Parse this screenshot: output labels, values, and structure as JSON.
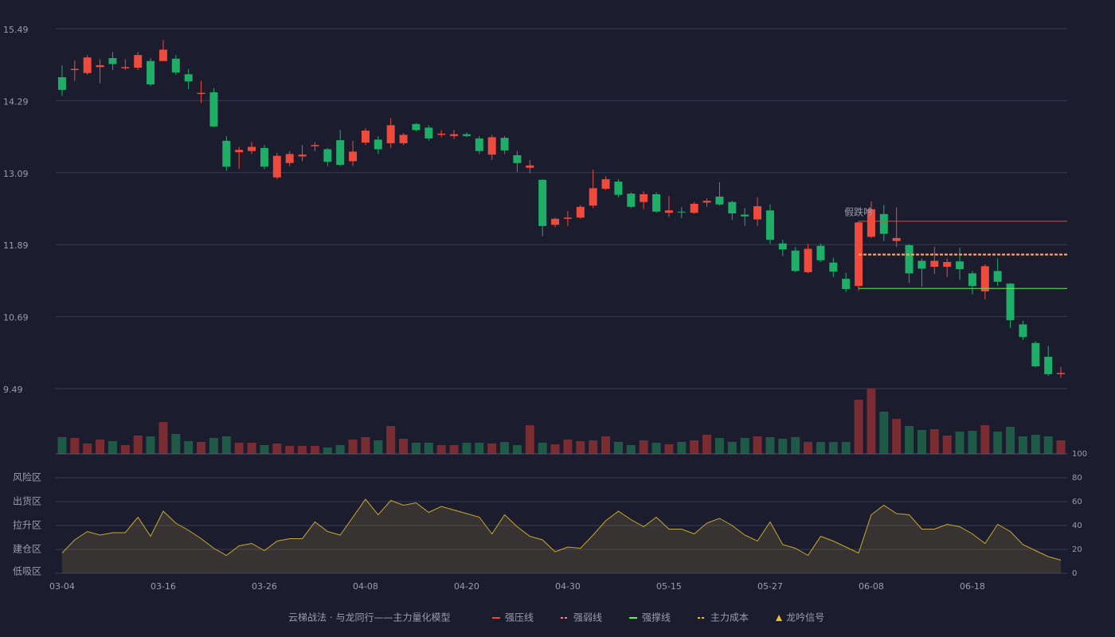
{
  "chart_data": {
    "type": "candlestick",
    "categories": [
      "03-04",
      null,
      null,
      null,
      null,
      null,
      null,
      null,
      "03-16",
      null,
      null,
      null,
      null,
      null,
      null,
      null,
      "03-26",
      null,
      null,
      null,
      null,
      null,
      null,
      null,
      "04-08",
      null,
      null,
      null,
      null,
      null,
      null,
      null,
      "04-20",
      null,
      null,
      null,
      null,
      null,
      null,
      null,
      "04-30",
      null,
      null,
      null,
      null,
      null,
      null,
      null,
      "05-15",
      null,
      null,
      null,
      null,
      null,
      null,
      null,
      "05-27",
      null,
      null,
      null,
      null,
      null,
      null,
      null,
      "06-08",
      null,
      null,
      null,
      null,
      null,
      null,
      null,
      "06-18",
      null,
      null,
      null,
      null,
      null,
      null,
      null
    ],
    "open": [
      14.68,
      14.8,
      14.75,
      14.85,
      15.0,
      14.83,
      14.84,
      14.95,
      14.95,
      14.99,
      14.73,
      14.4,
      14.43,
      13.62,
      13.43,
      13.45,
      13.5,
      13.01,
      13.25,
      13.36,
      13.53,
      13.48,
      13.63,
      13.28,
      13.59,
      13.64,
      13.58,
      13.58,
      13.9,
      13.84,
      13.72,
      13.7,
      13.73,
      13.66,
      13.39,
      13.67,
      13.38,
      13.17,
      12.97,
      12.22,
      12.32,
      12.34,
      12.54,
      12.82,
      12.94,
      12.74,
      12.6,
      12.73,
      12.42,
      12.44,
      12.42,
      12.59,
      12.69,
      12.6,
      12.39,
      12.31,
      12.46,
      11.91,
      11.79,
      11.43,
      11.87,
      11.59,
      11.32,
      11.2,
      12.02,
      12.4,
      11.95,
      11.88,
      11.62,
      11.52,
      11.52,
      11.61,
      11.41,
      11.11,
      11.45,
      11.24,
      10.56,
      10.25,
      10.02,
      9.73
    ],
    "close": [
      14.47,
      14.82,
      15.01,
      14.88,
      14.9,
      14.85,
      15.05,
      14.56,
      15.14,
      14.76,
      14.61,
      14.42,
      13.86,
      13.19,
      13.47,
      13.52,
      13.19,
      13.37,
      13.4,
      13.39,
      13.55,
      13.27,
      13.22,
      13.44,
      13.79,
      13.48,
      13.88,
      13.72,
      13.8,
      13.66,
      13.74,
      13.73,
      13.7,
      13.45,
      13.68,
      13.46,
      13.25,
      13.21,
      12.2,
      12.32,
      12.34,
      12.52,
      12.83,
      12.98,
      12.72,
      12.52,
      12.73,
      12.44,
      12.46,
      12.43,
      12.57,
      12.62,
      12.56,
      12.41,
      12.36,
      12.53,
      11.97,
      11.81,
      11.45,
      11.82,
      11.63,
      11.44,
      11.15,
      12.26,
      12.48,
      12.07,
      12.0,
      11.41,
      11.49,
      11.62,
      11.6,
      11.48,
      11.2,
      11.53,
      11.27,
      10.63,
      10.35,
      9.86,
      9.73,
      9.75
    ],
    "low": [
      14.37,
      14.62,
      14.72,
      14.58,
      14.8,
      14.8,
      14.8,
      14.53,
      14.95,
      14.72,
      14.48,
      14.25,
      13.85,
      13.12,
      13.15,
      13.4,
      13.15,
      12.98,
      13.2,
      13.28,
      13.45,
      13.2,
      13.2,
      13.2,
      13.55,
      13.4,
      13.5,
      13.55,
      13.78,
      13.62,
      13.68,
      13.65,
      13.68,
      13.4,
      13.3,
      13.4,
      13.1,
      13.08,
      12.03,
      12.18,
      12.2,
      12.32,
      12.5,
      12.8,
      12.68,
      12.5,
      12.48,
      12.42,
      12.35,
      12.33,
      12.4,
      12.52,
      12.54,
      12.3,
      12.2,
      12.2,
      11.9,
      11.7,
      11.43,
      11.41,
      11.6,
      11.35,
      11.1,
      11.12,
      12.0,
      11.95,
      11.85,
      11.25,
      11.19,
      11.4,
      11.35,
      11.3,
      11.06,
      10.98,
      11.2,
      10.5,
      10.3,
      9.85,
      9.7,
      9.67
    ],
    "high": [
      14.88,
      14.96,
      15.05,
      14.98,
      15.1,
      14.98,
      15.1,
      15.0,
      15.3,
      15.05,
      14.82,
      14.62,
      14.5,
      13.7,
      13.52,
      13.6,
      13.55,
      13.42,
      13.45,
      13.55,
      13.6,
      13.5,
      13.8,
      13.62,
      13.83,
      13.7,
      14.0,
      13.75,
      13.92,
      13.88,
      13.8,
      13.8,
      13.76,
      13.7,
      13.72,
      13.7,
      13.45,
      13.3,
      12.98,
      12.34,
      12.45,
      12.55,
      13.14,
      13.03,
      12.98,
      12.76,
      12.78,
      12.76,
      12.7,
      12.52,
      12.6,
      12.66,
      12.93,
      12.62,
      12.5,
      12.68,
      12.56,
      11.97,
      11.85,
      11.9,
      11.91,
      11.67,
      11.42,
      12.28,
      12.61,
      12.55,
      12.51,
      11.9,
      11.66,
      11.85,
      11.66,
      11.84,
      11.45,
      11.56,
      11.66,
      11.25,
      10.62,
      10.28,
      10.2,
      9.85
    ],
    "volume": [
      21,
      20,
      13,
      18,
      16,
      11,
      23,
      22,
      40,
      25,
      16,
      15,
      20,
      22,
      14,
      14,
      11,
      13,
      10,
      10,
      10,
      8,
      11,
      18,
      21,
      17,
      35,
      19,
      14,
      14,
      11,
      11,
      14,
      14,
      13,
      15,
      11,
      36,
      14,
      12,
      18,
      16,
      17,
      22,
      15,
      11,
      17,
      14,
      12,
      15,
      17,
      24,
      20,
      15,
      20,
      22,
      21,
      19,
      21,
      15,
      15,
      15,
      15,
      68,
      82,
      53,
      44,
      35,
      30,
      31,
      23,
      28,
      29,
      36,
      28,
      34,
      22,
      24,
      22,
      17
    ],
    "up_color": "#ee4b3c",
    "down_color": "#1fae67",
    "up_volume_color": "#7a2c33",
    "down_volume_color": "#1e5a45",
    "ylim": [
      9.49,
      15.49
    ],
    "yticks": [
      9.49,
      10.69,
      11.89,
      13.09,
      14.29,
      15.49
    ],
    "grid": true,
    "levels": [
      {
        "name": "强压线",
        "color": "#e84a3c",
        "value": 12.28,
        "dashed": false
      },
      {
        "name": "强弱线",
        "color": "#ff7a8a",
        "value": 11.73,
        "dashed": true
      },
      {
        "name": "强撑线",
        "color": "#5cf05c",
        "value": 11.16,
        "dashed": false
      },
      {
        "name": "主力成本",
        "color": "#f0c020",
        "value": 11.72,
        "dashed": true
      }
    ],
    "signal": {
      "name": "龙吟信号",
      "color": "#f0c020"
    },
    "annotation": "假跌吟",
    "legend_title": "云梯战法 · 与龙同行——主力量化模型",
    "indicator": {
      "color": "#c8a82a",
      "ylim": [
        0,
        100
      ],
      "yticks": [
        0,
        20,
        40,
        60,
        80,
        100
      ],
      "tick_colors": [
        "#f03c3c",
        "#f05a5a",
        "#4d8fe8",
        "#e040e0",
        "#e8a33d",
        "#38e038"
      ],
      "zones": [
        {
          "name": "低吸区",
          "color": "#f03c3c"
        },
        {
          "name": "建仓区",
          "color": "#f05050"
        },
        {
          "name": "拉升区",
          "color": "#4d8fe8"
        },
        {
          "name": "出货区",
          "color": "#e040e0"
        },
        {
          "name": "风险区",
          "color": "#e8a33d"
        }
      ],
      "values": [
        17,
        28,
        35,
        32,
        34,
        34,
        47,
        31,
        52,
        42,
        36,
        29,
        21,
        15,
        23,
        25,
        19,
        27,
        29,
        29,
        43,
        35,
        32,
        47,
        62,
        49,
        61,
        57,
        59,
        51,
        56,
        53,
        50,
        47,
        33,
        49,
        39,
        31,
        28,
        18,
        22,
        21,
        32,
        44,
        52,
        45,
        39,
        47,
        37,
        37,
        33,
        42,
        46,
        40,
        32,
        27,
        43,
        24,
        21,
        15,
        31,
        27,
        22,
        17,
        49,
        57,
        50,
        49,
        37,
        37,
        41,
        39,
        33,
        25,
        41,
        35,
        24,
        19,
        14,
        11
      ]
    }
  }
}
